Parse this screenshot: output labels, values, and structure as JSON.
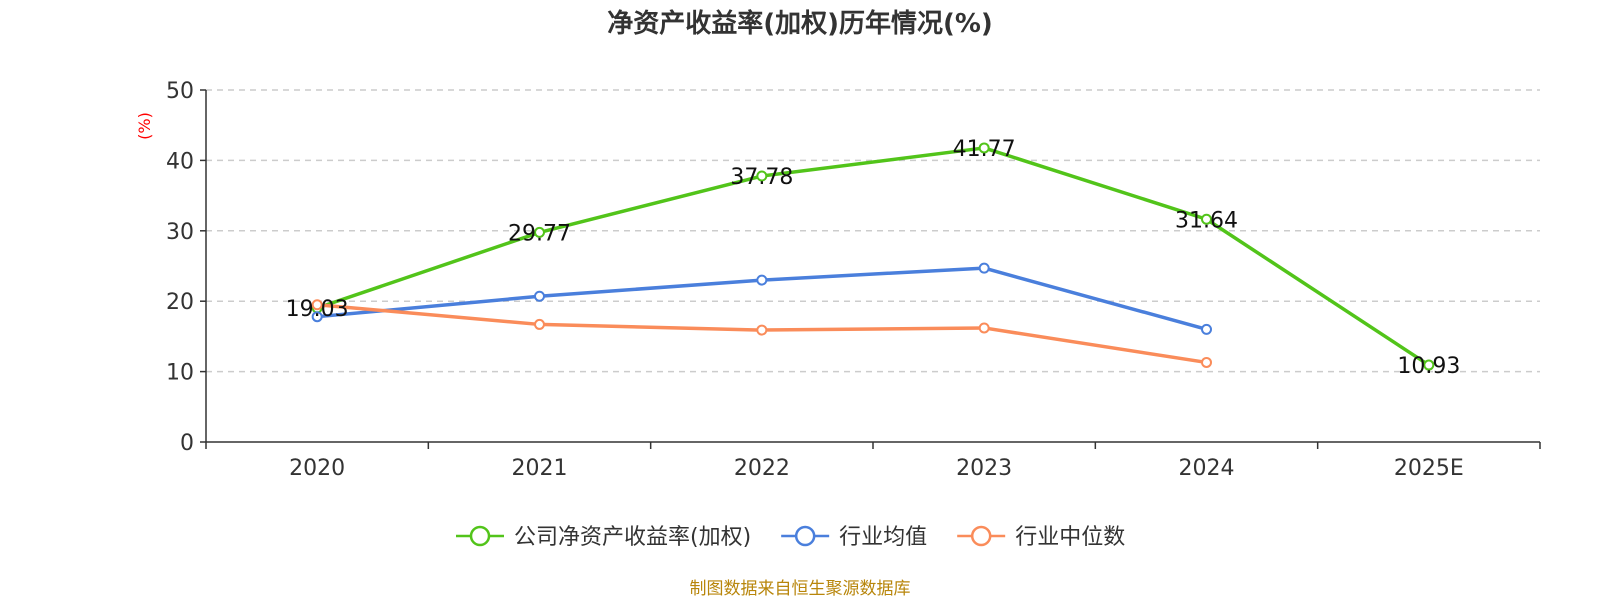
{
  "chart_data": {
    "type": "line",
    "title": "净资产收益率(加权)历年情况(%)",
    "ylabel": "(%)",
    "xlabel": "",
    "categories": [
      "2020",
      "2021",
      "2022",
      "2023",
      "2024",
      "2025E"
    ],
    "ylim": [
      0,
      50
    ],
    "yticks": [
      0,
      10,
      20,
      30,
      40,
      50
    ],
    "grid": true,
    "legend_position": "bottom",
    "series": [
      {
        "name": "公司净资产收益率(加权)",
        "color": "#52c41a",
        "values": [
          19.03,
          29.77,
          37.78,
          41.77,
          31.64,
          10.93
        ],
        "show_labels": true
      },
      {
        "name": "行业均值",
        "color": "#4a7fdc",
        "values": [
          17.8,
          20.7,
          23.0,
          24.7,
          16.0,
          null
        ],
        "show_labels": false
      },
      {
        "name": "行业中位数",
        "color": "#fa8c5a",
        "values": [
          19.5,
          16.7,
          15.9,
          16.2,
          11.3,
          null
        ],
        "show_labels": false
      }
    ],
    "labels": [
      "19.03",
      "29.77",
      "37.78",
      "41.77",
      "31.64",
      "10.93"
    ]
  },
  "footer": "制图数据来自恒生聚源数据库"
}
